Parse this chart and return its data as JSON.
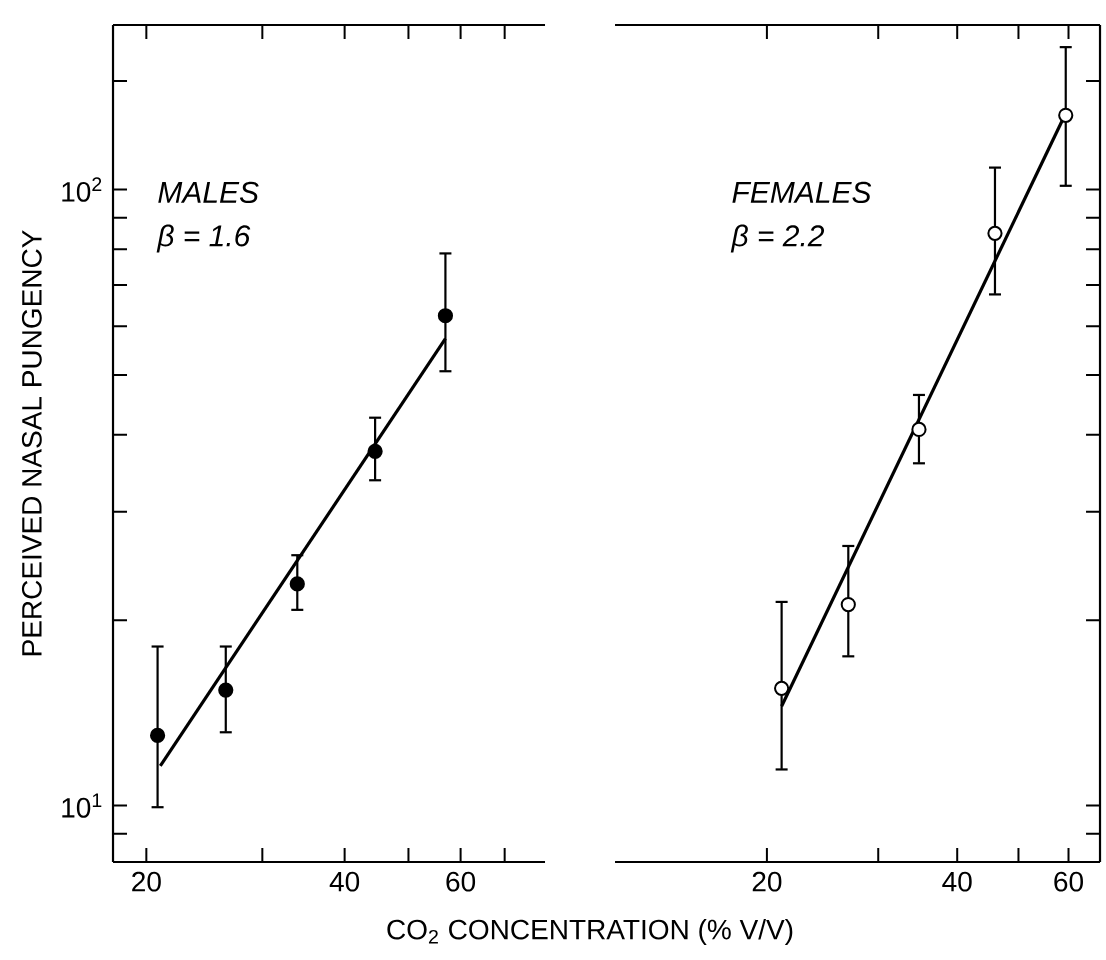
{
  "chart_data": [
    {
      "type": "scatter",
      "xlabel": "CO$_{2}$  CONCENTRATION (% V/V)",
      "ylabel": "PERCEIVED NASAL PUNGENCY",
      "annotations": [
        "MALES",
        "β = 1.6"
      ],
      "log": "xy",
      "xlim": [
        17.8,
        80.6
      ],
      "ylim": [
        8.1,
        185
      ],
      "xticks": [
        20,
        {
          "value": 30,
          "label": null
        },
        40,
        {
          "value": 50,
          "label": null
        },
        60,
        {
          "value": 70,
          "label": null
        }
      ],
      "yticks": [
        {
          "value": 9,
          "label": null
        },
        {
          "value": 10,
          "label": "10$^{1}$"
        },
        {
          "value": 20,
          "label": null
        },
        {
          "value": 30,
          "label": null
        },
        {
          "value": 40,
          "label": null
        },
        {
          "value": 50,
          "label": null
        },
        {
          "value": 60,
          "label": null
        },
        {
          "value": 70,
          "label": null
        },
        {
          "value": 80,
          "label": null
        },
        {
          "value": 90,
          "label": null
        },
        {
          "value": 100,
          "label": "10$^{2}$"
        },
        {
          "value": 150,
          "label": null
        }
      ],
      "series": [
        {
          "marker": "circle",
          "color": "#000000",
          "x": [
            20.8,
            26.4,
            33.9,
            44.5,
            56.9
          ],
          "values": [
            13.0,
            15.4,
            22.9,
            37.6,
            62.4
          ],
          "errors": [
            [
              9.9,
              18.2
            ],
            [
              13.1,
              18.2
            ],
            [
              20.7,
              25.6
            ],
            [
              33.6,
              42.8
            ],
            [
              50.5,
              79.1
            ]
          ]
        },
        {
          "type": "line",
          "marker": "none",
          "color": "#000000",
          "x": [
            21.0,
            56.9
          ],
          "values": [
            11.6,
            57.3
          ]
        }
      ]
    },
    {
      "type": "scatter",
      "annotations": [
        "FEMALES",
        "β = 2.2"
      ],
      "log": "xy",
      "tick_labels": "x",
      "xlim": [
        11.5,
        67.3
      ],
      "ylim": [
        8.1,
        185
      ],
      "xticks": [
        20,
        {
          "value": 30,
          "label": null
        },
        40,
        {
          "value": 50,
          "label": null
        },
        60
      ],
      "yticks": [
        {
          "value": 9,
          "label": null
        },
        {
          "value": 10,
          "label": null
        },
        {
          "value": 20,
          "label": null
        },
        {
          "value": 30,
          "label": null
        },
        {
          "value": 40,
          "label": null
        },
        {
          "value": 50,
          "label": null
        },
        {
          "value": 60,
          "label": null
        },
        {
          "value": 70,
          "label": null
        },
        {
          "value": 80,
          "label": null
        },
        {
          "value": 90,
          "label": null
        },
        {
          "value": 100,
          "label": null
        },
        {
          "value": 150,
          "label": null
        }
      ],
      "series": [
        {
          "marker": "circle",
          "color": "#ffffff",
          "x": [
            21.1,
            26.9,
            34.8,
            45.9,
            59.4
          ],
          "values": [
            15.5,
            21.2,
            40.8,
            84.9,
            132
          ],
          "errors": [
            [
              11.4,
              21.5
            ],
            [
              17.4,
              26.5
            ],
            [
              35.8,
              46.6
            ],
            [
              67.3,
              109
            ],
            [
              101,
              171
            ]
          ]
        },
        {
          "type": "line",
          "marker": "none",
          "color": "#000000",
          "x": [
            21.1,
            59.4
          ],
          "values": [
            14.5,
            133
          ]
        }
      ]
    }
  ]
}
